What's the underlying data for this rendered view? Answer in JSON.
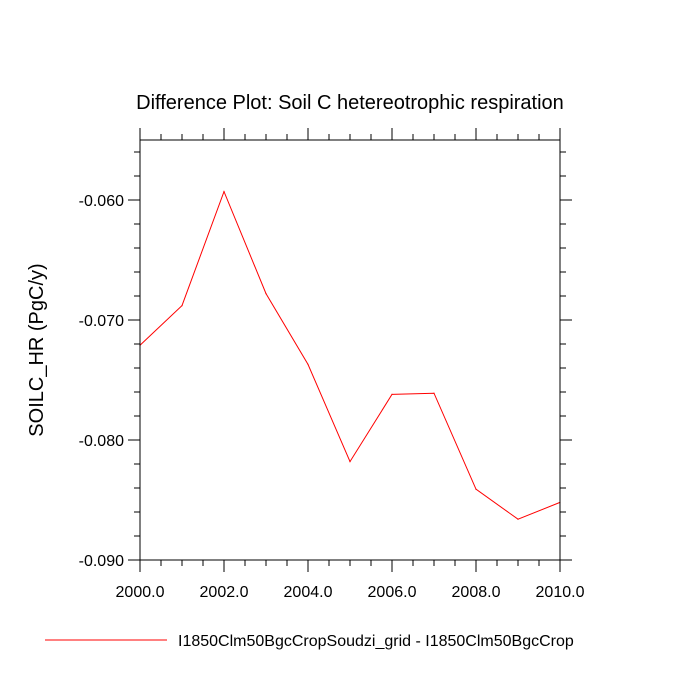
{
  "chart_data": {
    "type": "line",
    "title": "Difference Plot: Soil C hetereotrophic respiration",
    "xlabel": "",
    "ylabel": "SOILC_HR  (PgC/y)",
    "xlim": [
      2000,
      2010
    ],
    "ylim": [
      -0.09,
      -0.055
    ],
    "x_ticks": [
      2000,
      2002,
      2004,
      2006,
      2008,
      2010
    ],
    "x_tick_labels": [
      "2000.0",
      "2002.0",
      "2004.0",
      "2006.0",
      "2008.0",
      "2010.0"
    ],
    "y_ticks": [
      -0.09,
      -0.08,
      -0.07,
      -0.06
    ],
    "y_tick_labels": [
      "-0.090",
      "-0.080",
      "-0.070",
      "-0.060"
    ],
    "grid": false,
    "legend_position": "bottom",
    "series": [
      {
        "name": "I1850Clm50BgcCropSoudzi_grid - I1850Clm50BgcCrop",
        "color": "#ff0000",
        "x": [
          2000,
          2001,
          2002,
          2003,
          2004,
          2005,
          2006,
          2007,
          2008,
          2009,
          2010
        ],
        "values": [
          -0.0721,
          -0.0688,
          -0.0593,
          -0.0678,
          -0.0737,
          -0.0818,
          -0.0762,
          -0.0761,
          -0.0841,
          -0.0866,
          -0.0852
        ]
      }
    ]
  }
}
